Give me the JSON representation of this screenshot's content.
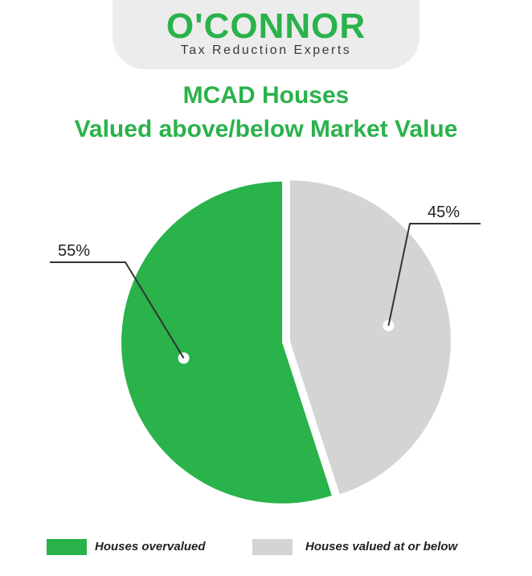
{
  "brand": {
    "name": "O'CONNOR",
    "tagline": "Tax Reduction Experts"
  },
  "title": {
    "line1": "MCAD Houses",
    "line2": "Valued above/below Market Value"
  },
  "colors": {
    "green": "#2ab24b",
    "gray": "#d4d4d5"
  },
  "chart_data": {
    "type": "pie",
    "title": "MCAD Houses Valued above/below Market Value",
    "slices": [
      {
        "label": "Houses overvalued",
        "value": 55,
        "display": "55%",
        "color": "#2ab24b"
      },
      {
        "label": "Houses valued at or below",
        "value": 45,
        "display": "45%",
        "color": "#d4d4d5"
      }
    ],
    "legend_position": "bottom"
  }
}
